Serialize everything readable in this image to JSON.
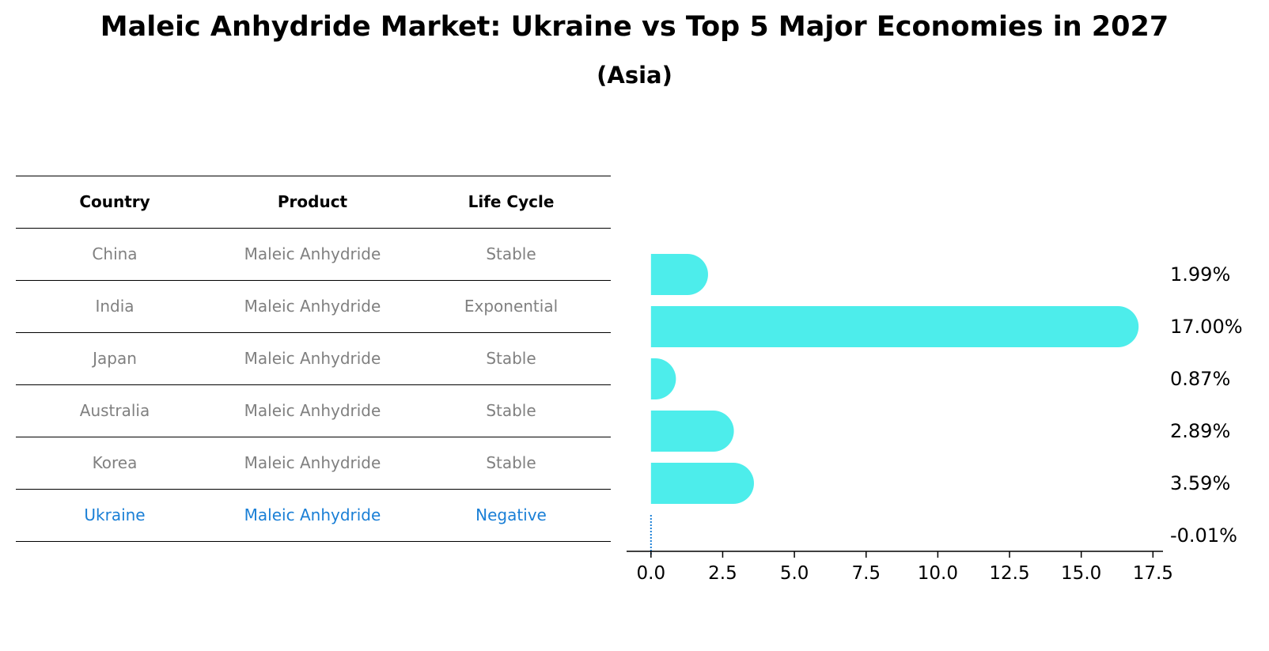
{
  "title": "Maleic Anhydride Market: Ukraine vs Top 5 Major Economies in 2027",
  "subtitle": "(Asia)",
  "table": {
    "headers": [
      "Country",
      "Product",
      "Life Cycle"
    ],
    "rows": [
      [
        "China",
        "Maleic Anhydride",
        "Stable"
      ],
      [
        "India",
        "Maleic Anhydride",
        "Exponential"
      ],
      [
        "Japan",
        "Maleic Anhydride",
        "Stable"
      ],
      [
        "Australia",
        "Maleic Anhydride",
        "Stable"
      ],
      [
        "Korea",
        "Maleic Anhydride",
        "Stable"
      ],
      [
        "Ukraine",
        "Maleic Anhydride",
        "Negative"
      ]
    ]
  },
  "colors": {
    "bar": "#4dedeb",
    "highlight": "#1a7fd6",
    "muted": "#808080"
  },
  "chart_data": {
    "type": "bar",
    "orientation": "horizontal",
    "categories": [
      "China",
      "India",
      "Japan",
      "Australia",
      "Korea",
      "Ukraine"
    ],
    "values": [
      1.99,
      17.0,
      0.87,
      2.89,
      3.59,
      -0.01
    ],
    "value_labels": [
      "1.99%",
      "17.00%",
      "0.87%",
      "2.89%",
      "3.59%",
      "-0.01%"
    ],
    "xlim": [
      -0.85,
      17.85
    ],
    "xticks": [
      0.0,
      2.5,
      5.0,
      7.5,
      10.0,
      12.5,
      15.0,
      17.5
    ],
    "xtick_labels": [
      "0.0",
      "2.5",
      "5.0",
      "7.5",
      "10.0",
      "12.5",
      "15.0",
      "17.5"
    ],
    "grid": false
  }
}
